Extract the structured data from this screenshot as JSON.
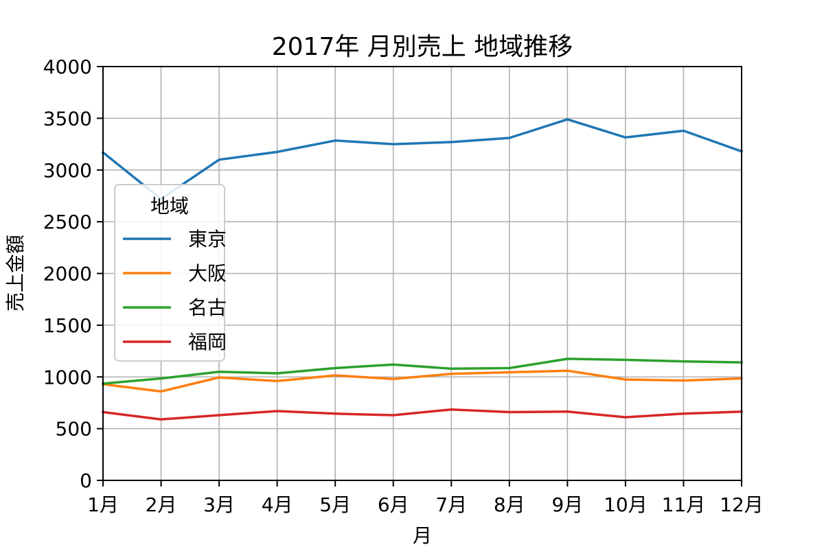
{
  "chart_data": {
    "type": "line",
    "title": "2017年 月別売上 地域推移",
    "xlabel": "月",
    "ylabel": "売上金額",
    "categories": [
      "1月",
      "2月",
      "3月",
      "4月",
      "5月",
      "6月",
      "7月",
      "8月",
      "9月",
      "10月",
      "11月",
      "12月"
    ],
    "ylim": [
      0,
      4000
    ],
    "yticks": [
      0,
      500,
      1000,
      1500,
      2000,
      2500,
      3000,
      3500,
      4000
    ],
    "grid": true,
    "legend": {
      "title": "地域",
      "placement": "center-left"
    },
    "series": [
      {
        "name": "東京",
        "color": "#1f77b4",
        "values": [
          3170,
          2720,
          3100,
          3175,
          3285,
          3250,
          3270,
          3310,
          3490,
          3315,
          3380,
          3180
        ]
      },
      {
        "name": "大阪",
        "color": "#ff7f0e",
        "values": [
          930,
          860,
          995,
          960,
          1015,
          980,
          1030,
          1045,
          1060,
          975,
          965,
          985
        ]
      },
      {
        "name": "名古",
        "color": "#2ca02c",
        "values": [
          935,
          985,
          1050,
          1035,
          1085,
          1120,
          1080,
          1085,
          1175,
          1165,
          1150,
          1140
        ]
      },
      {
        "name": "福岡",
        "color": "#d62728",
        "values": [
          660,
          590,
          630,
          670,
          645,
          630,
          685,
          660,
          665,
          610,
          645,
          665
        ]
      }
    ]
  }
}
